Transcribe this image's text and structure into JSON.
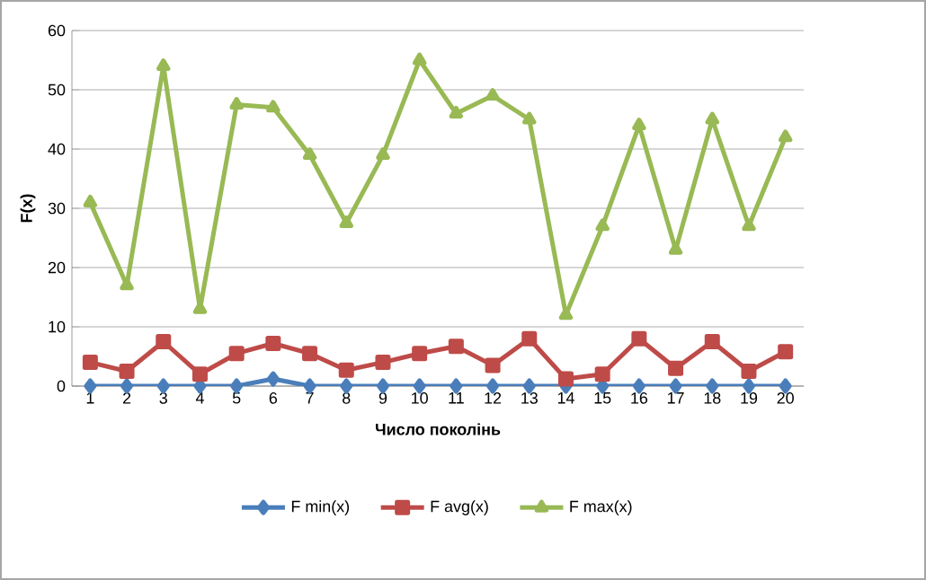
{
  "chart_data": {
    "type": "line",
    "xlabel": "Число поколінь",
    "ylabel": "F(x)",
    "categories": [
      "1",
      "2",
      "3",
      "4",
      "5",
      "6",
      "7",
      "8",
      "9",
      "10",
      "11",
      "12",
      "13",
      "14",
      "15",
      "16",
      "17",
      "18",
      "19",
      "20"
    ],
    "series": [
      {
        "name": "F min(x)",
        "color": "#4a7ebb",
        "marker": "diamond",
        "values": [
          0,
          0,
          0,
          0,
          0,
          1.2,
          0,
          0,
          0,
          0,
          0,
          0,
          0,
          0,
          0,
          0,
          0,
          0,
          0,
          0
        ]
      },
      {
        "name": "F avg(x)",
        "color": "#be4b48",
        "marker": "square",
        "values": [
          4,
          2.5,
          7.5,
          2,
          5.5,
          7.2,
          5.5,
          2.7,
          4,
          5.5,
          6.7,
          3.5,
          8,
          1.2,
          2,
          8,
          3,
          7.5,
          2.5,
          5.8
        ]
      },
      {
        "name": "F max(x)",
        "color": "#98b954",
        "marker": "triangle",
        "values": [
          31,
          17,
          54,
          13,
          47.5,
          47,
          39,
          27.5,
          39,
          55,
          46,
          49,
          45,
          12,
          27,
          44,
          23,
          45,
          27,
          42
        ]
      }
    ],
    "ylim": [
      0,
      60
    ],
    "yticks": [
      0,
      10,
      20,
      30,
      40,
      50,
      60
    ],
    "grid": "y",
    "legend": "bottom"
  }
}
